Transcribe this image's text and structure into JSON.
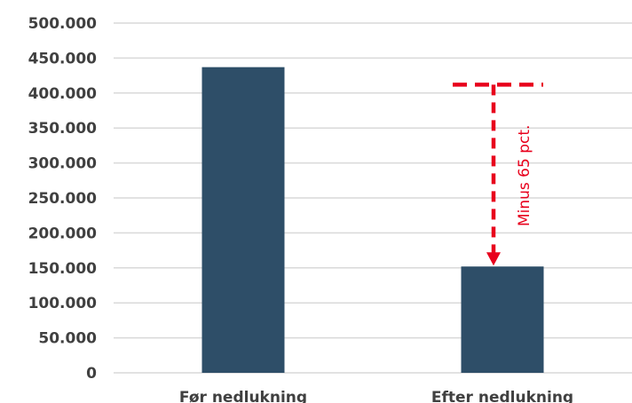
{
  "chart_data": {
    "type": "bar",
    "categories": [
      "Før nedlukning",
      "Efter nedlukning"
    ],
    "values": [
      437000,
      152000
    ],
    "ylim": [
      0,
      500000
    ],
    "yticks": [
      {
        "value": 0,
        "label": "0"
      },
      {
        "value": 50000,
        "label": "50.000"
      },
      {
        "value": 100000,
        "label": "100.000"
      },
      {
        "value": 150000,
        "label": "150.000"
      },
      {
        "value": 200000,
        "label": "200.000"
      },
      {
        "value": 250000,
        "label": "250.000"
      },
      {
        "value": 300000,
        "label": "300.000"
      },
      {
        "value": 350000,
        "label": "350.000"
      },
      {
        "value": 400000,
        "label": "400.000"
      },
      {
        "value": 450000,
        "label": "450.000"
      },
      {
        "value": 500000,
        "label": "500.000"
      }
    ],
    "grid": true,
    "bar_color": "#2e4e68",
    "grid_color": "#d9d9d9",
    "annotation": {
      "text": "Minus 65 pct.",
      "color": "#e8001c",
      "from_value": 412000,
      "to_value": 152000,
      "category_index": 1
    }
  }
}
